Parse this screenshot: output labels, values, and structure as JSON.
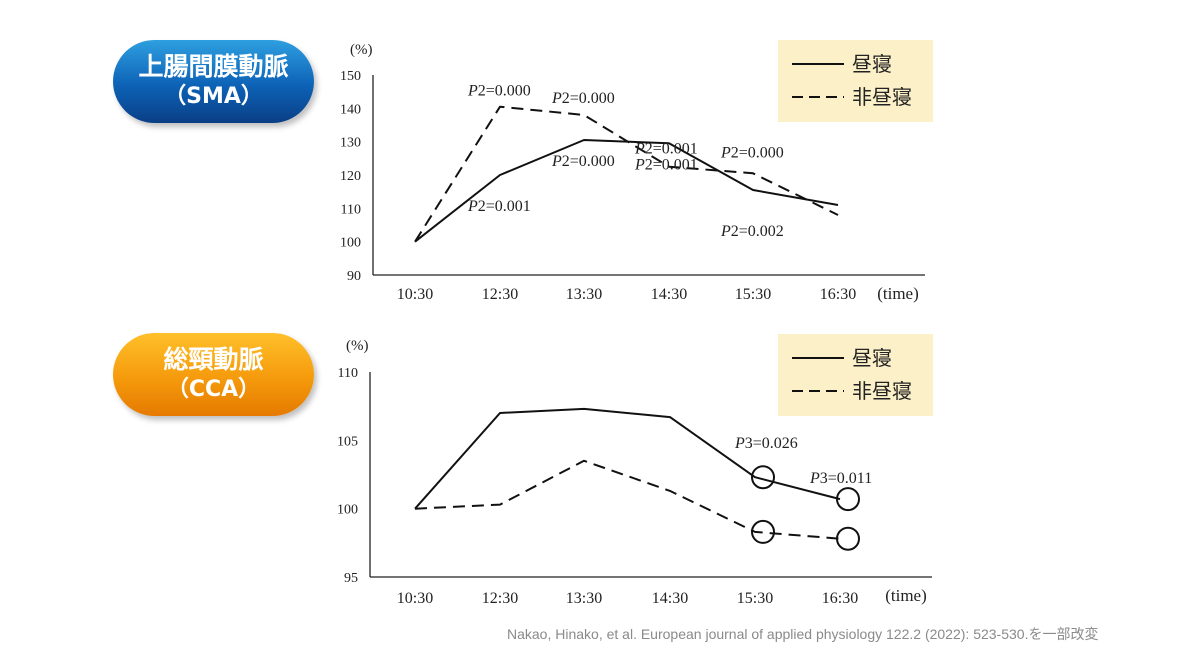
{
  "panels": {
    "sma": {
      "label_line1": "上腸間膜動脈",
      "label_line2": "（SMA）"
    },
    "cca": {
      "label_line1": "総頸動脈",
      "label_line2": "（CCA）"
    }
  },
  "citation": "Nakao, Hinako, et al. European journal of applied physiology 122.2 (2022): 523-530.を一部改変",
  "chart_data": [
    {
      "type": "line",
      "ylabel": "(%)",
      "xlabel": "(time)",
      "categories": [
        "10:30",
        "12:30",
        "13:30",
        "14:30",
        "15:30",
        "16:30"
      ],
      "ylim": [
        90,
        150
      ],
      "yticks": [
        90,
        100,
        110,
        120,
        130,
        140,
        150
      ],
      "series": [
        {
          "name": "昼寝",
          "style": "solid",
          "values": [
            100,
            120,
            130.5,
            129.5,
            115.5,
            111
          ]
        },
        {
          "name": "非昼寝",
          "style": "dashed",
          "values": [
            100,
            140.5,
            138,
            122.5,
            120.5,
            108
          ]
        }
      ],
      "annotations": [
        {
          "text": "P2=0.000",
          "series": "非昼寝",
          "index": 1
        },
        {
          "text": "P2=0.000",
          "series": "非昼寝",
          "index": 2
        },
        {
          "text": "P2=0.001",
          "series": "非昼寝",
          "index": 3
        },
        {
          "text": "P2=0.000",
          "series": "非昼寝",
          "index": 4
        },
        {
          "text": "P2=0.001",
          "series": "昼寝",
          "index": 1
        },
        {
          "text": "P2=0.000",
          "series": "昼寝",
          "index": 2
        },
        {
          "text": "P2=0.001",
          "series": "昼寝",
          "index": 3
        },
        {
          "text": "P2=0.002",
          "series": "昼寝",
          "index": 4
        }
      ],
      "legend": {
        "placement": "top-right",
        "background": "#fcf0c8"
      }
    },
    {
      "type": "line",
      "ylabel": "(%)",
      "xlabel": "(time)",
      "categories": [
        "10:30",
        "12:30",
        "13:30",
        "14:30",
        "15:30",
        "16:30"
      ],
      "ylim": [
        95,
        110
      ],
      "yticks": [
        95,
        100,
        105,
        110
      ],
      "series": [
        {
          "name": "昼寝",
          "style": "solid",
          "values": [
            100,
            107,
            107.3,
            106.7,
            102.3,
            100.7
          ]
        },
        {
          "name": "非昼寝",
          "style": "dashed",
          "values": [
            100,
            100.3,
            103.5,
            101.3,
            98.3,
            97.8
          ]
        }
      ],
      "annotations": [
        {
          "text": "P3=0.026",
          "index": 4
        },
        {
          "text": "P3=0.011",
          "index": 5
        }
      ],
      "circled_points": [
        {
          "series": "昼寝",
          "index": 4
        },
        {
          "series": "昼寝",
          "index": 5
        },
        {
          "series": "非昼寝",
          "index": 4
        },
        {
          "series": "非昼寝",
          "index": 5
        }
      ],
      "legend": {
        "placement": "top-right",
        "background": "#fcf0c8"
      }
    }
  ]
}
